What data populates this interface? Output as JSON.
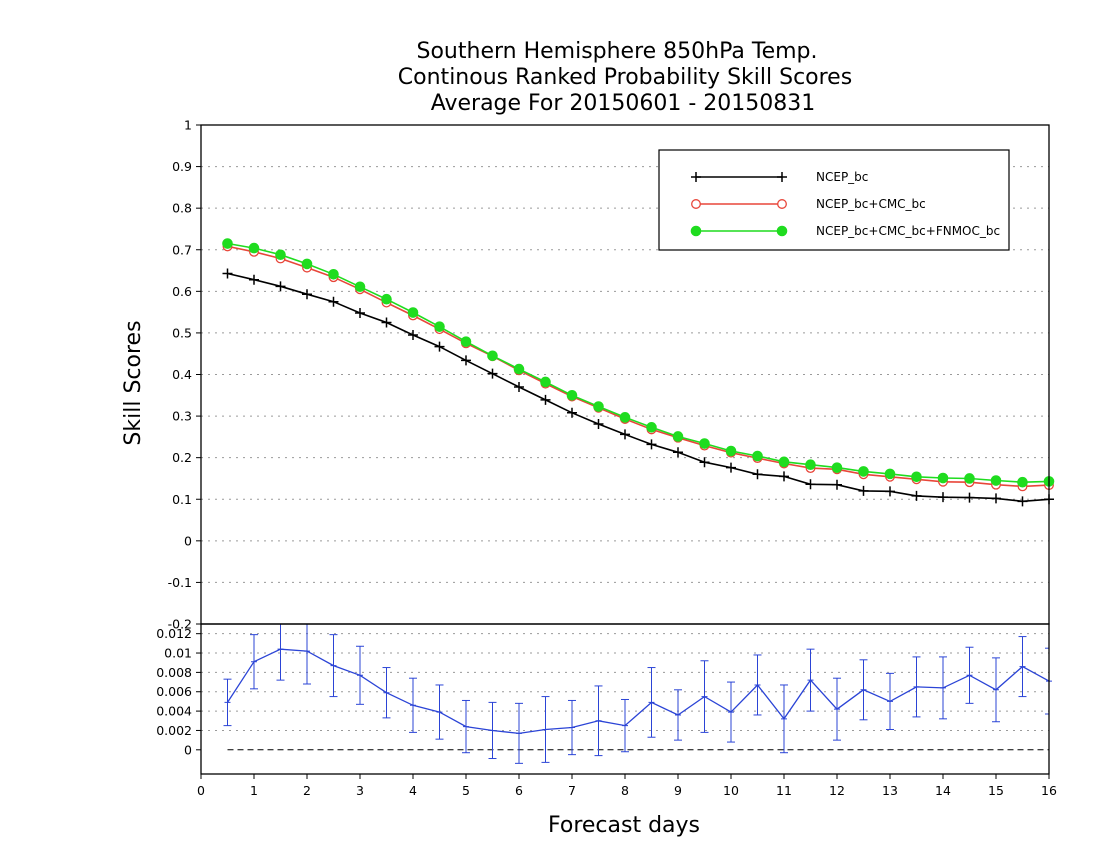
{
  "chart_data": [
    {
      "type": "line",
      "title_lines": [
        "Southern Hemisphere 850hPa Temp.",
        "Continous Ranked Probability Skill Scores",
        "Average For 20150601 - 20150831"
      ],
      "xlabel": "Forecast days",
      "ylabel": "Skill Scores",
      "xlim": [
        0,
        16
      ],
      "ylim": [
        -0.2,
        1
      ],
      "x_ticks": [
        "0",
        "1",
        "2",
        "3",
        "4",
        "5",
        "6",
        "7",
        "8",
        "9",
        "10",
        "11",
        "12",
        "13",
        "14",
        "15",
        "16"
      ],
      "y_ticks": [
        "-0.2",
        "-0.1",
        "0",
        "0.1",
        "0.2",
        "0.3",
        "0.4",
        "0.5",
        "0.6",
        "0.7",
        "0.8",
        "0.9",
        "1"
      ],
      "grid": true,
      "legend_position": "top-right",
      "x": [
        0.5,
        1,
        1.5,
        2,
        2.5,
        3,
        3.5,
        4,
        4.5,
        5,
        5.5,
        6,
        6.5,
        7,
        7.5,
        8,
        8.5,
        9,
        9.5,
        10,
        10.5,
        11,
        11.5,
        12,
        12.5,
        13,
        13.5,
        14,
        14.5,
        15,
        15.5,
        16
      ],
      "series": [
        {
          "name": "NCEP_bc",
          "color": "#000000",
          "marker": "plus",
          "values": [
            0.643,
            0.628,
            0.612,
            0.593,
            0.575,
            0.548,
            0.525,
            0.495,
            0.467,
            0.434,
            0.402,
            0.37,
            0.339,
            0.308,
            0.281,
            0.256,
            0.232,
            0.213,
            0.189,
            0.176,
            0.16,
            0.155,
            0.136,
            0.135,
            0.12,
            0.119,
            0.108,
            0.105,
            0.104,
            0.102,
            0.095,
            0.1
          ]
        },
        {
          "name": "NCEP_bc+CMC_bc",
          "color": "#e8463a",
          "marker": "open-circle",
          "values": [
            0.708,
            0.695,
            0.679,
            0.657,
            0.634,
            0.605,
            0.573,
            0.542,
            0.509,
            0.475,
            0.444,
            0.41,
            0.378,
            0.347,
            0.32,
            0.293,
            0.268,
            0.248,
            0.229,
            0.212,
            0.199,
            0.186,
            0.175,
            0.172,
            0.16,
            0.154,
            0.148,
            0.142,
            0.141,
            0.135,
            0.131,
            0.134
          ]
        },
        {
          "name": "NCEP_bc+CMC_bc+FNMOC_bc",
          "color": "#1fdc1f",
          "marker": "filled-circle",
          "values": [
            0.715,
            0.704,
            0.688,
            0.666,
            0.641,
            0.611,
            0.581,
            0.549,
            0.515,
            0.479,
            0.445,
            0.413,
            0.382,
            0.35,
            0.323,
            0.297,
            0.273,
            0.251,
            0.234,
            0.216,
            0.204,
            0.19,
            0.183,
            0.176,
            0.167,
            0.161,
            0.154,
            0.151,
            0.15,
            0.145,
            0.141,
            0.143
          ]
        }
      ]
    },
    {
      "type": "line",
      "subtype": "errorbar",
      "xlim": [
        0,
        16
      ],
      "ylim": [
        -0.0025,
        0.013
      ],
      "y_ticks": [
        "0",
        "0.002",
        "0.004",
        "0.006",
        "0.008",
        "0.01",
        "0.012"
      ],
      "reference_line": 0,
      "color": "#2b44d6",
      "x": [
        0.5,
        1,
        1.5,
        2,
        2.5,
        3,
        3.5,
        4,
        4.5,
        5,
        5.5,
        6,
        6.5,
        7,
        7.5,
        8,
        8.5,
        9,
        9.5,
        10,
        10.5,
        11,
        11.5,
        12,
        12.5,
        13,
        13.5,
        14,
        14.5,
        15,
        15.5,
        16
      ],
      "values": [
        0.0049,
        0.0091,
        0.0104,
        0.0102,
        0.0087,
        0.0077,
        0.0059,
        0.0046,
        0.0039,
        0.0024,
        0.002,
        0.0017,
        0.0021,
        0.0023,
        0.003,
        0.0025,
        0.0049,
        0.0036,
        0.0055,
        0.0039,
        0.0067,
        0.0032,
        0.0072,
        0.0042,
        0.0062,
        0.005,
        0.0065,
        0.0064,
        0.0077,
        0.0062,
        0.0086,
        0.0071
      ],
      "error": [
        0.0024,
        0.0028,
        0.0032,
        0.0034,
        0.0032,
        0.003,
        0.0026,
        0.0028,
        0.0028,
        0.0027,
        0.0029,
        0.0031,
        0.0034,
        0.0028,
        0.0036,
        0.0027,
        0.0036,
        0.0026,
        0.0037,
        0.0031,
        0.0031,
        0.0035,
        0.0032,
        0.0032,
        0.0031,
        0.0029,
        0.0031,
        0.0032,
        0.0029,
        0.0033,
        0.0031,
        0.0034
      ]
    }
  ]
}
